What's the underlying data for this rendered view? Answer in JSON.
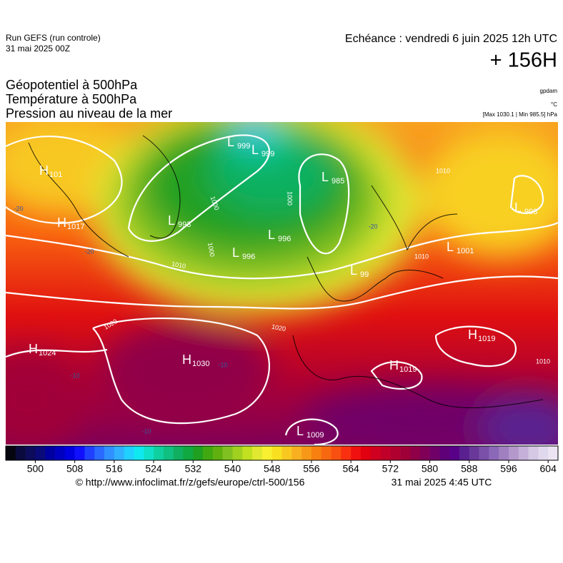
{
  "header": {
    "run_title": "Run GEFS (run controle)",
    "run_date": "31 mai 2025 00Z",
    "valid_time": "Echéance : vendredi 6 juin 2025 12h UTC",
    "lead": "+ 156H",
    "fields": [
      "Géopotentiel à 500hPa",
      "Température à 500hPa",
      "Pression au niveau de la mer"
    ],
    "unit_geopotential": "gpdam",
    "unit_temperature": "°C",
    "extremes": "[Max 1030.1 | Min 985.5] hPa"
  },
  "map": {
    "centers": [
      {
        "type": "H",
        "value": "101"
      },
      {
        "type": "L",
        "value": "999"
      },
      {
        "type": "L",
        "value": "999"
      },
      {
        "type": "L",
        "value": "985"
      },
      {
        "type": "L",
        "value": "993"
      },
      {
        "type": "L",
        "value": "996"
      },
      {
        "type": "L",
        "value": "996"
      },
      {
        "type": "L",
        "value": "998"
      },
      {
        "type": "L",
        "value": "1001"
      },
      {
        "type": "L",
        "value": "99"
      },
      {
        "type": "H",
        "value": "1017"
      },
      {
        "type": "H",
        "value": "1024"
      },
      {
        "type": "H",
        "value": "1030"
      },
      {
        "type": "H",
        "value": "1019"
      },
      {
        "type": "H",
        "value": "1019"
      },
      {
        "type": "L",
        "value": "1009"
      }
    ],
    "isobar_labels": [
      "1000",
      "1000",
      "1000",
      "1010",
      "1010",
      "1020",
      "1020",
      "1010",
      "1010"
    ],
    "temperature_labels": [
      "-20",
      "-20",
      "-10",
      "-10",
      "-10",
      "-20"
    ]
  },
  "colorbar": {
    "range": [
      494,
      606
    ],
    "ticks": [
      500,
      508,
      516,
      524,
      532,
      540,
      548,
      556,
      564,
      572,
      580,
      588,
      596,
      604
    ],
    "colors": [
      "#05050f",
      "#0a0a3c",
      "#0c0c5a",
      "#0a0a78",
      "#0000a0",
      "#0000c0",
      "#0000e0",
      "#1010ff",
      "#2040ff",
      "#2a6aff",
      "#3090ff",
      "#30b0ff",
      "#20d0ff",
      "#10e8f0",
      "#10e0c8",
      "#10d0a0",
      "#10c080",
      "#10b060",
      "#10a840",
      "#20a020",
      "#40a810",
      "#60b010",
      "#80c020",
      "#a0d020",
      "#c0e020",
      "#e0e830",
      "#f8f030",
      "#f8e020",
      "#f8c820",
      "#f8b020",
      "#f89818",
      "#f88010",
      "#f86810",
      "#f85010",
      "#f83010",
      "#f01010",
      "#e00010",
      "#d00020",
      "#c00028",
      "#b00030",
      "#a00038",
      "#900048",
      "#800058",
      "#700068",
      "#600078",
      "#580088",
      "#5a2090",
      "#6a3898",
      "#7a50a8",
      "#8c68b8",
      "#a080c0",
      "#b498cc",
      "#c4b0d8",
      "#d4c8e4",
      "#e0d8ec",
      "#ece4f2"
    ]
  },
  "footer": {
    "url": "© http://www.infoclimat.fr/z/gefs/europe/ctrl-500/156",
    "timestamp": "31 mai 2025  4:45 UTC"
  }
}
